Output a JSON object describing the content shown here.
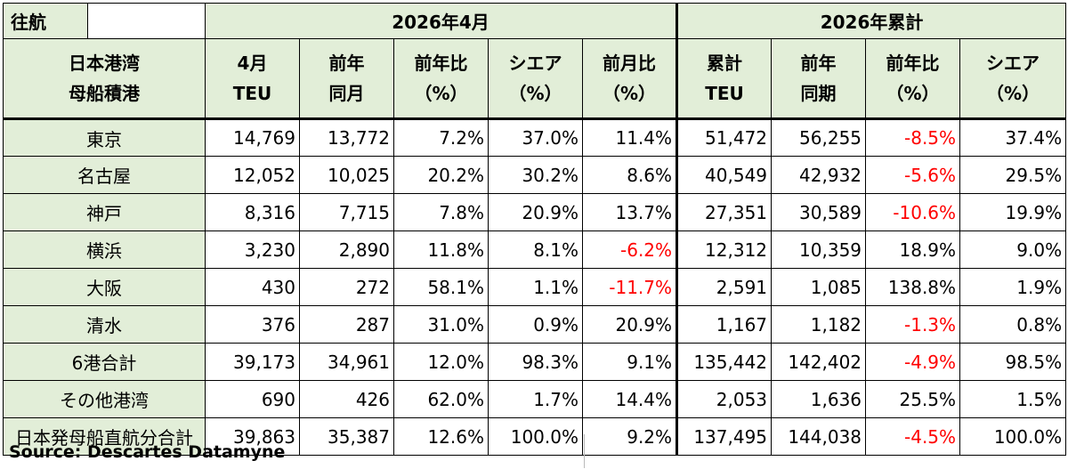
{
  "header": {
    "corner": "往航",
    "group_month": "2026年4月",
    "group_cumulative": "2026年累計"
  },
  "columns": {
    "port_line1": "日本港湾",
    "port_line2": "母船積港",
    "month_teu_1": "4月",
    "month_teu_2": "TEU",
    "prev_month_1": "前年",
    "prev_month_2": "同月",
    "yoy_1": "前年比",
    "yoy_2": "（%）",
    "share_1": "シエア",
    "share_2": "（%）",
    "mom_1": "前月比",
    "mom_2": "（%）",
    "cum_teu_1": "累計",
    "cum_teu_2": "TEU",
    "prev_period_1": "前年",
    "prev_period_2": "同期",
    "cum_yoy_1": "前年比",
    "cum_yoy_2": "（%）",
    "cum_share_1": "シエア",
    "cum_share_2": "（%）"
  },
  "rows": [
    {
      "port": "東京",
      "teu": "14,769",
      "prev": "13,772",
      "yoy": "7.2%",
      "share": "37.0%",
      "mom": "11.4%",
      "cum": "51,472",
      "cum_prev": "56,255",
      "cum_yoy": "-8.5%",
      "cum_share": "37.4%"
    },
    {
      "port": "名古屋",
      "teu": "12,052",
      "prev": "10,025",
      "yoy": "20.2%",
      "share": "30.2%",
      "mom": "8.6%",
      "cum": "40,549",
      "cum_prev": "42,932",
      "cum_yoy": "-5.6%",
      "cum_share": "29.5%"
    },
    {
      "port": "神戸",
      "teu": "8,316",
      "prev": "7,715",
      "yoy": "7.8%",
      "share": "20.9%",
      "mom": "13.7%",
      "cum": "27,351",
      "cum_prev": "30,589",
      "cum_yoy": "-10.6%",
      "cum_share": "19.9%"
    },
    {
      "port": "横浜",
      "teu": "3,230",
      "prev": "2,890",
      "yoy": "11.8%",
      "share": "8.1%",
      "mom": "-6.2%",
      "cum": "12,312",
      "cum_prev": "10,359",
      "cum_yoy": "18.9%",
      "cum_share": "9.0%"
    },
    {
      "port": "大阪",
      "teu": "430",
      "prev": "272",
      "yoy": "58.1%",
      "share": "1.1%",
      "mom": "-11.7%",
      "cum": "2,591",
      "cum_prev": "1,085",
      "cum_yoy": "138.8%",
      "cum_share": "1.9%"
    },
    {
      "port": "清水",
      "teu": "376",
      "prev": "287",
      "yoy": "31.0%",
      "share": "0.9%",
      "mom": "20.9%",
      "cum": "1,167",
      "cum_prev": "1,182",
      "cum_yoy": "-1.3%",
      "cum_share": "0.8%"
    },
    {
      "port": "6港合計",
      "teu": "39,173",
      "prev": "34,961",
      "yoy": "12.0%",
      "share": "98.3%",
      "mom": "9.1%",
      "cum": "135,442",
      "cum_prev": "142,402",
      "cum_yoy": "-4.9%",
      "cum_share": "98.5%"
    },
    {
      "port": "その他港湾",
      "teu": "690",
      "prev": "426",
      "yoy": "62.0%",
      "share": "1.7%",
      "mom": "14.4%",
      "cum": "2,053",
      "cum_prev": "1,636",
      "cum_yoy": "25.5%",
      "cum_share": "1.5%"
    },
    {
      "port": "日本発母船直航分合計",
      "teu": "39,863",
      "prev": "35,387",
      "yoy": "12.6%",
      "share": "100.0%",
      "mom": "9.2%",
      "cum": "137,495",
      "cum_prev": "144,038",
      "cum_yoy": "-4.5%",
      "cum_share": "100.0%"
    }
  ],
  "colors": {
    "header_bg": "#e2eed8",
    "negative": "#ff0000"
  },
  "source": "Source:  Descartes Datamyne"
}
